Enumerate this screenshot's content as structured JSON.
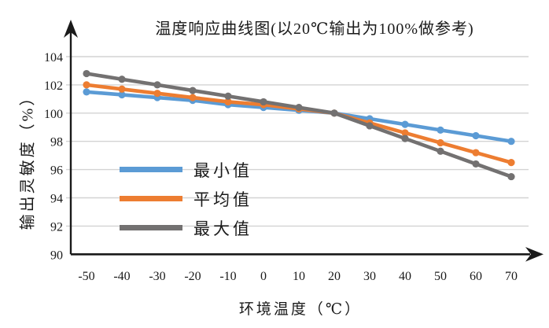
{
  "chart_data": {
    "type": "line",
    "title": "温度响应曲线图(以20℃输出为100%做参考)",
    "xlabel": "环境温度（℃）",
    "ylabel": "输出灵敏度（%）",
    "x": [
      -50,
      -40,
      -30,
      -20,
      -10,
      0,
      10,
      20,
      30,
      40,
      50,
      60,
      70
    ],
    "x_ticks": [
      "-50",
      "-40",
      "-30",
      "-20",
      "-10",
      "0",
      "10",
      "20",
      "30",
      "40",
      "50",
      "60",
      "70"
    ],
    "y_ticks": [
      "90",
      "92",
      "94",
      "96",
      "98",
      "100",
      "102",
      "104"
    ],
    "ylim": [
      90,
      104
    ],
    "ytick_step": 2,
    "grid": true,
    "legend_position": "inside-left",
    "series": [
      {
        "name": "最小值",
        "color": "#5B9BD5",
        "values": [
          101.5,
          101.3,
          101.1,
          100.9,
          100.6,
          100.4,
          100.2,
          100.0,
          99.6,
          99.2,
          98.8,
          98.4,
          98.0
        ]
      },
      {
        "name": "平均值",
        "color": "#ED7D31",
        "values": [
          102.0,
          101.7,
          101.4,
          101.1,
          100.8,
          100.6,
          100.3,
          100.0,
          99.3,
          98.6,
          97.9,
          97.2,
          96.5
        ]
      },
      {
        "name": "最大值",
        "color": "#737171",
        "values": [
          102.8,
          102.4,
          102.0,
          101.6,
          101.2,
          100.8,
          100.4,
          100.0,
          99.1,
          98.2,
          97.3,
          96.4,
          95.5
        ]
      }
    ]
  },
  "colors": {
    "grid": "#D3D3D3",
    "axis": "#1A1A1A",
    "background": "#FFFFFF"
  }
}
